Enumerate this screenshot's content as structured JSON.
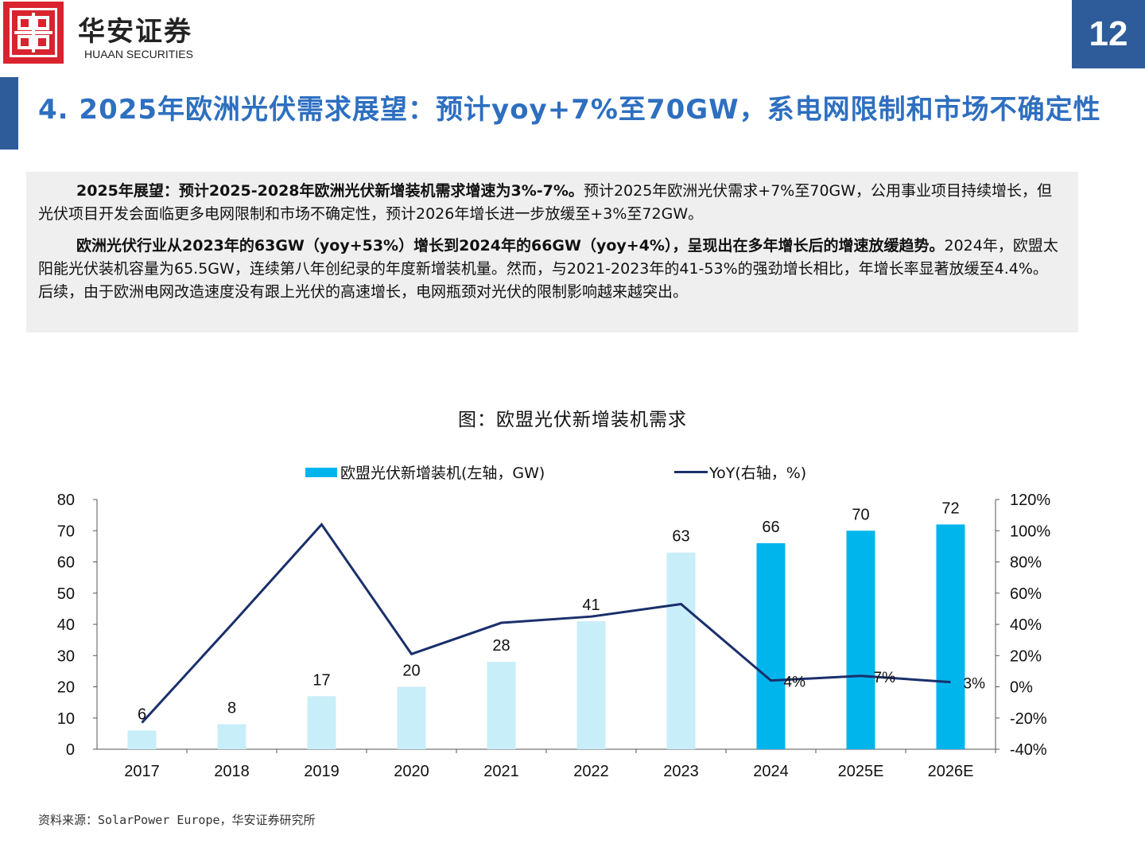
{
  "header": {
    "brand_cn": "华安证券",
    "brand_en": "HUAAN SECURITIES",
    "page_number": "12",
    "title": "4. 2025年欧洲光伏需求展望：预计yoy+7%至70GW，系电网限制和市场不确定性",
    "accent_color": "#2e5c9a",
    "logo_color": "#d9232e"
  },
  "summary": {
    "p1_bold": "2025年展望：预计2025-2028年欧洲光伏新增装机需求增速为3%-7%。",
    "p1_text": "预计2025年欧洲光伏需求+7%至70GW，公用事业项目持续增长，但光伏项目开发会面临更多电网限制和市场不确定性，预计2026年增长进一步放缓至+3%至72GW。",
    "p2_bold": "欧洲光伏行业从2023年的63GW（yoy+53%）增长到2024年的66GW（yoy+4%），呈现出在多年增长后的增速放缓趋势。",
    "p2_text": "2024年，欧盟太阳能光伏装机容量为65.5GW，连续第八年创纪录的年度新增装机量。然而，与2021-2023年的41-53%的强劲增长相比，年增长率显著放缓至4.4%。后续，由于欧洲电网改造速度没有跟上光伏的高速增长，电网瓶颈对光伏的限制影响越来越突出。"
  },
  "chart_data": {
    "type": "bar+line",
    "title": "图：欧盟光伏新增装机需求",
    "categories": [
      "2017",
      "2018",
      "2019",
      "2020",
      "2021",
      "2022",
      "2023",
      "2024",
      "2025E",
      "2026E"
    ],
    "series": [
      {
        "name": "欧盟光伏新增装机(左轴，GW)",
        "type": "bar",
        "axis": "left",
        "values": [
          6,
          8,
          17,
          20,
          28,
          41,
          63,
          66,
          70,
          72
        ],
        "labels": [
          "6",
          "8",
          "17",
          "20",
          "28",
          "41",
          "63",
          "66",
          "70",
          "72"
        ],
        "colors": {
          "history": "#c8eef9",
          "recent": "#00b5ec"
        }
      },
      {
        "name": "YoY(右轴，%)",
        "type": "line",
        "axis": "right",
        "values": [
          -23,
          40,
          104,
          21,
          41,
          45,
          53,
          4,
          7,
          3
        ],
        "labels": [
          "",
          "",
          "",
          "",
          "",
          "",
          "",
          "4%",
          "7%",
          "3%"
        ],
        "color": "#1a2f6b"
      }
    ],
    "left_axis": {
      "min": 0,
      "max": 80,
      "ticks": [
        "0",
        "10",
        "20",
        "30",
        "40",
        "50",
        "60",
        "70",
        "80"
      ]
    },
    "right_axis": {
      "min": -40,
      "max": 120,
      "ticks": [
        "-40%",
        "-20%",
        "0%",
        "20%",
        "40%",
        "60%",
        "80%",
        "100%",
        "120%"
      ]
    },
    "legend_position": "top",
    "grid": false
  },
  "source": "资料来源：SolarPower Europe，华安证券研究所"
}
